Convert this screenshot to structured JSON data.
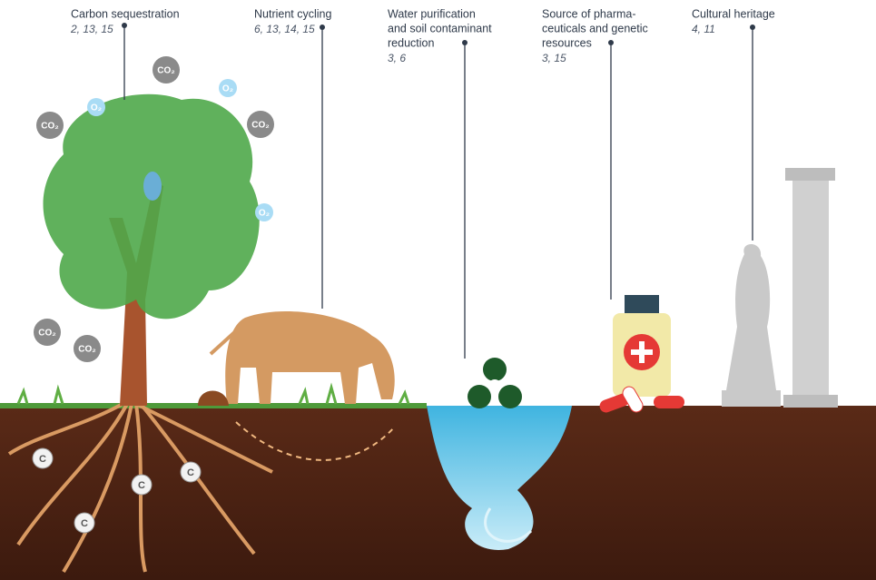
{
  "services": [
    {
      "lines": [
        "Carbon sequestration"
      ],
      "refs": "2, 13, 15"
    },
    {
      "lines": [
        "Nutrient cycling"
      ],
      "refs": "6, 13, 14, 15"
    },
    {
      "lines": [
        "Water purification",
        "and soil contaminant",
        "reduction"
      ],
      "refs": "3, 6"
    },
    {
      "lines": [
        "Source of pharma-",
        "ceuticals and genetic",
        "resources"
      ],
      "refs": "3, 15"
    },
    {
      "lines": [
        "Cultural heritage"
      ],
      "refs": "4, 11"
    }
  ],
  "bubbles": {
    "co2": "CO₂",
    "o2": "O₂",
    "c": "C"
  }
}
